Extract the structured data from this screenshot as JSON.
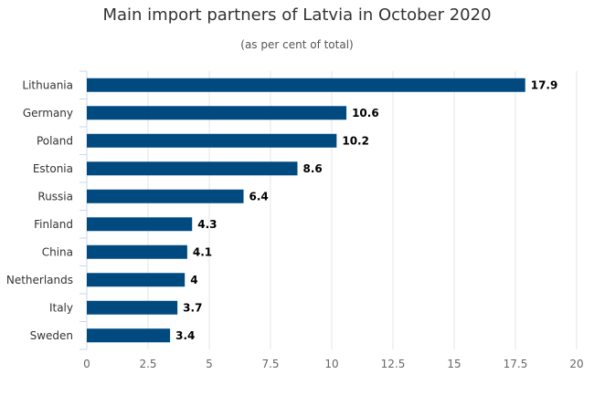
{
  "chart_data": {
    "type": "bar",
    "orientation": "horizontal",
    "title": "Main import partners of Latvia in October 2020",
    "subtitle": "(as per cent of total)",
    "categories": [
      "Lithuania",
      "Germany",
      "Poland",
      "Estonia",
      "Russia",
      "Finland",
      "China",
      "Netherlands",
      "Italy",
      "Sweden"
    ],
    "values": [
      17.9,
      10.6,
      10.2,
      8.6,
      6.4,
      4.3,
      4.1,
      4,
      3.7,
      3.4
    ],
    "value_labels": [
      "17.9",
      "10.6",
      "10.2",
      "8.6",
      "6.4",
      "4.3",
      "4.1",
      "4",
      "3.7",
      "3.4"
    ],
    "xlim": [
      0,
      20
    ],
    "xticks": [
      0,
      2.5,
      5,
      7.5,
      10,
      12.5,
      15,
      17.5,
      20
    ],
    "xtick_labels": [
      "0",
      "2.5",
      "5",
      "7.5",
      "10",
      "12.5",
      "15",
      "17.5",
      "20"
    ],
    "grid": true,
    "bar_color": "#004a80",
    "grid_color": "#e6e6e6"
  }
}
